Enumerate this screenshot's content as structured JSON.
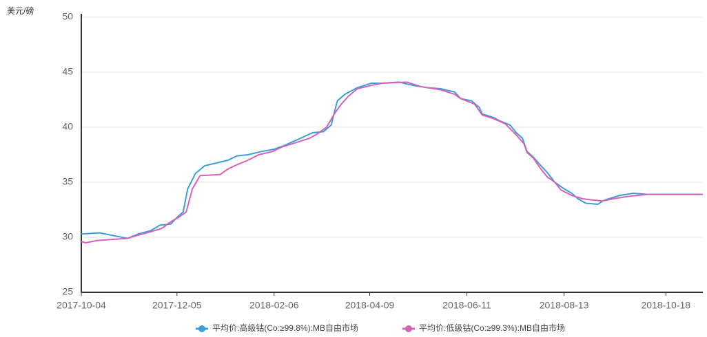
{
  "chart_data": {
    "type": "line",
    "y_axis_label": "美元/磅",
    "xlim": [
      "2017-10-04",
      "2018-11-11"
    ],
    "xticks": [
      "2017-10-04",
      "2017-12-05",
      "2018-02-06",
      "2018-04-09",
      "2018-06-11",
      "2018-08-13",
      "2018-10-18"
    ],
    "ylim": [
      25,
      50
    ],
    "yticks": [
      25,
      30,
      35,
      40,
      45,
      50
    ],
    "grid": true,
    "legend": "bottom",
    "series": [
      {
        "name": "平均价:高级钴(Co:≥99.8%):MB自由市场",
        "color": "#3a9fd8",
        "x": [
          "2017-10-04",
          "2017-10-16",
          "2017-11-03",
          "2017-11-10",
          "2017-11-18",
          "2017-11-24",
          "2017-12-01",
          "2017-12-05",
          "2017-12-09",
          "2017-12-12",
          "2017-12-17",
          "2017-12-23",
          "2018-01-07",
          "2018-01-13",
          "2018-01-20",
          "2018-01-29",
          "2018-02-06",
          "2018-02-12",
          "2018-02-20",
          "2018-03-03",
          "2018-03-10",
          "2018-03-15",
          "2018-03-19",
          "2018-03-24",
          "2018-03-28",
          "2018-04-01",
          "2018-04-10",
          "2018-04-17",
          "2018-04-28",
          "2018-05-07",
          "2018-05-16",
          "2018-05-25",
          "2018-06-03",
          "2018-06-07",
          "2018-06-14",
          "2018-06-19",
          "2018-06-21",
          "2018-06-28",
          "2018-07-02",
          "2018-07-09",
          "2018-07-13",
          "2018-07-17",
          "2018-07-20",
          "2018-07-24",
          "2018-07-29",
          "2018-08-02",
          "2018-08-07",
          "2018-08-12",
          "2018-08-18",
          "2018-08-22",
          "2018-08-27",
          "2018-09-04",
          "2018-09-07",
          "2018-09-11",
          "2018-09-18",
          "2018-09-27",
          "2018-10-06",
          "2018-11-11"
        ],
        "values": [
          30.3,
          30.4,
          29.9,
          30.3,
          30.6,
          31.1,
          31.2,
          31.8,
          32.3,
          34.4,
          35.8,
          36.5,
          37.0,
          37.4,
          37.5,
          37.8,
          38.0,
          38.3,
          38.8,
          39.5,
          39.6,
          40.2,
          42.4,
          43.0,
          43.3,
          43.6,
          44.0,
          44.0,
          44.1,
          43.8,
          43.6,
          43.5,
          43.2,
          42.6,
          42.4,
          41.8,
          41.2,
          40.9,
          40.6,
          40.2,
          39.5,
          39.0,
          37.8,
          37.3,
          36.5,
          35.9,
          35.0,
          34.5,
          34.0,
          33.5,
          33.1,
          33.0,
          33.3,
          33.5,
          33.8,
          34.0,
          33.9,
          33.9
        ]
      },
      {
        "name": "平均价:低级钴(Co:≥99.3%):MB自由市场",
        "color": "#d860b8",
        "x": [
          "2017-10-04",
          "2017-10-07",
          "2017-10-14",
          "2017-10-23",
          "2017-11-03",
          "2017-11-10",
          "2017-11-18",
          "2017-11-25",
          "2017-12-02",
          "2017-12-06",
          "2017-12-11",
          "2017-12-15",
          "2017-12-20",
          "2018-01-02",
          "2018-01-07",
          "2018-01-13",
          "2018-01-20",
          "2018-01-27",
          "2018-02-05",
          "2018-02-11",
          "2018-02-20",
          "2018-03-01",
          "2018-03-06",
          "2018-03-12",
          "2018-03-17",
          "2018-03-21",
          "2018-03-26",
          "2018-04-01",
          "2018-04-10",
          "2018-04-17",
          "2018-05-03",
          "2018-05-12",
          "2018-05-25",
          "2018-06-03",
          "2018-06-07",
          "2018-06-16",
          "2018-06-21",
          "2018-06-28",
          "2018-07-06",
          "2018-07-13",
          "2018-07-18",
          "2018-07-20",
          "2018-07-24",
          "2018-07-29",
          "2018-08-02",
          "2018-08-07",
          "2018-08-11",
          "2018-08-18",
          "2018-08-25",
          "2018-08-31",
          "2018-09-07",
          "2018-09-14",
          "2018-09-23",
          "2018-10-06",
          "2018-11-11"
        ],
        "values": [
          29.6,
          29.5,
          29.7,
          29.8,
          29.9,
          30.2,
          30.5,
          30.8,
          31.5,
          31.8,
          32.3,
          34.4,
          35.6,
          35.7,
          36.2,
          36.6,
          37.0,
          37.5,
          37.8,
          38.2,
          38.6,
          39.0,
          39.4,
          40.0,
          41.2,
          42.0,
          42.8,
          43.5,
          43.8,
          44.0,
          44.1,
          43.7,
          43.4,
          43.0,
          42.6,
          42.1,
          41.1,
          40.8,
          40.3,
          39.3,
          38.5,
          37.7,
          37.2,
          36.2,
          35.5,
          35.0,
          34.3,
          33.8,
          33.5,
          33.4,
          33.3,
          33.5,
          33.7,
          33.9,
          33.9
        ]
      }
    ]
  }
}
